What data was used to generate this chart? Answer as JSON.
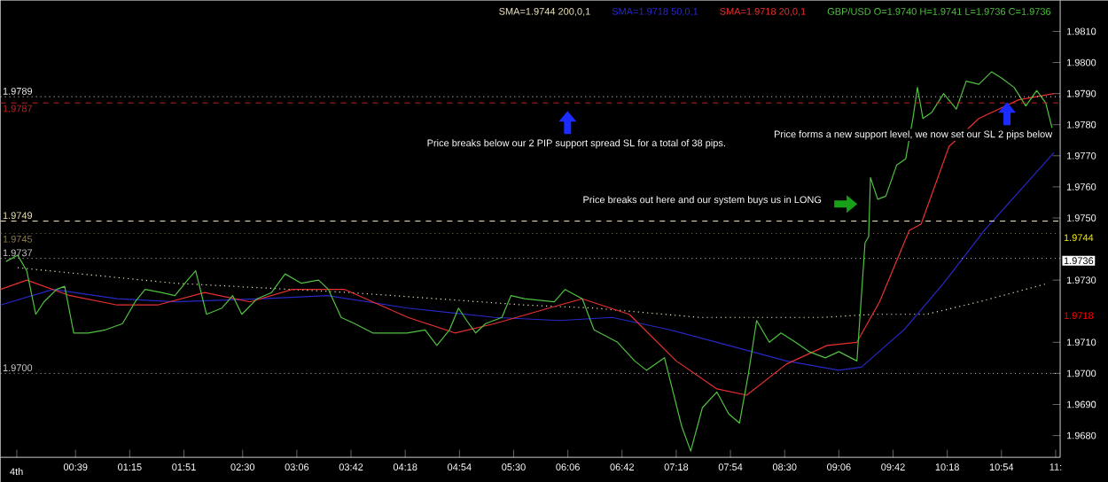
{
  "chart_data": {
    "type": "line",
    "legend": "top right",
    "xlim": [
      -0.18,
      11.55
    ],
    "ylim": [
      1.9673,
      1.982
    ],
    "xticks": [
      {
        "value": 0,
        "label": null
      },
      {
        "value": 0.65,
        "label": "00:39"
      },
      {
        "value": 1.25,
        "label": "01:15"
      },
      {
        "value": 1.85,
        "label": "01:51"
      },
      {
        "value": 2.5,
        "label": "02:30"
      },
      {
        "value": 3.1,
        "label": "03:06"
      },
      {
        "value": 3.7,
        "label": "03:42"
      },
      {
        "value": 4.3,
        "label": "04:18"
      },
      {
        "value": 4.9,
        "label": "04:54"
      },
      {
        "value": 5.5,
        "label": "05:30"
      },
      {
        "value": 6.1,
        "label": "06:06"
      },
      {
        "value": 6.7,
        "label": "06:42"
      },
      {
        "value": 7.3,
        "label": "07:18"
      },
      {
        "value": 7.9,
        "label": "07:54"
      },
      {
        "value": 8.5,
        "label": "08:30"
      },
      {
        "value": 9.1,
        "label": "09:06"
      },
      {
        "value": 9.7,
        "label": "09:42"
      },
      {
        "value": 10.3,
        "label": "10:18"
      },
      {
        "value": 10.9,
        "label": "10:54"
      },
      {
        "value": 11.5,
        "label": "11:"
      }
    ],
    "yticks": [
      {
        "value": 1.968,
        "label": "1.9680"
      },
      {
        "value": 1.969,
        "label": "1.9690"
      },
      {
        "value": 1.97,
        "label": "1.9700"
      },
      {
        "value": 1.971,
        "label": "1.9710"
      },
      {
        "value": 1.973,
        "label": "1.9730"
      },
      {
        "value": 1.975,
        "label": "1.9750"
      },
      {
        "value": 1.976,
        "label": "1.9760"
      },
      {
        "value": 1.977,
        "label": "1.9770"
      },
      {
        "value": 1.978,
        "label": "1.9780"
      },
      {
        "value": 1.979,
        "label": "1.9790"
      },
      {
        "value": 1.98,
        "label": "1.9800"
      },
      {
        "value": 1.981,
        "label": "1.9810"
      }
    ],
    "series": [
      {
        "name": "SMA=1.9744 200,0,1",
        "color": "#f0e6c0",
        "line_style": "dotted",
        "x": [
          0.01,
          1.75,
          3.69,
          5.62,
          6.39,
          7.56,
          8.91,
          9.49,
          10.07,
          10.65,
          11.42
        ],
        "values": [
          1.9734,
          1.9729,
          1.9726,
          1.9722,
          1.9721,
          1.9718,
          1.9718,
          1.9719,
          1.9719,
          1.9723,
          1.9729
        ]
      },
      {
        "name": "SMA=1.9718 50,0,1",
        "color": "#2828c8",
        "x": [
          -0.18,
          0.4,
          1.11,
          1.75,
          2.72,
          3.44,
          4.33,
          5.29,
          6.01,
          6.59,
          7.23,
          7.88,
          8.52,
          9.1,
          9.35,
          9.82,
          10.26,
          10.71,
          11.48
        ],
        "values": [
          1.9722,
          1.9727,
          1.9724,
          1.9723,
          1.9724,
          1.9725,
          1.9721,
          1.9718,
          1.9717,
          1.9718,
          1.9714,
          1.9709,
          1.9704,
          1.9701,
          1.9702,
          1.9714,
          1.9729,
          1.9746,
          1.9771
        ]
      },
      {
        "name": "SMA=1.9718 20,0,1",
        "color": "#e83030",
        "x": [
          -0.18,
          0.11,
          0.59,
          1.11,
          1.56,
          2.08,
          2.58,
          3.05,
          3.63,
          4.33,
          4.85,
          5.29,
          6.01,
          6.26,
          6.78,
          7.3,
          7.75,
          8.08,
          8.52,
          8.97,
          9.3,
          9.55,
          9.88,
          10.01,
          10.32,
          10.65,
          11.09,
          11.48
        ],
        "values": [
          1.9727,
          1.973,
          1.9725,
          1.9722,
          1.9722,
          1.9726,
          1.9723,
          1.9727,
          1.9727,
          1.9718,
          1.9713,
          1.9716,
          1.9722,
          1.9724,
          1.9719,
          1.9704,
          1.9695,
          1.9693,
          1.9703,
          1.9709,
          1.971,
          1.9723,
          1.9746,
          1.9748,
          1.9773,
          1.9782,
          1.9788,
          1.979
        ]
      },
      {
        "name": "GBP/USD O=1.9740 H=1.9741 L=1.9736 C=1.9736",
        "color": "#50c040",
        "x": [
          -0.12,
          0.01,
          0.11,
          0.21,
          0.3,
          0.44,
          0.53,
          0.63,
          0.79,
          0.98,
          1.17,
          1.31,
          1.42,
          1.6,
          1.75,
          1.89,
          1.98,
          2.1,
          2.27,
          2.39,
          2.49,
          2.66,
          2.82,
          2.97,
          3.15,
          3.34,
          3.45,
          3.59,
          3.74,
          3.94,
          4.13,
          4.32,
          4.52,
          4.65,
          4.79,
          4.89,
          4.98,
          5.08,
          5.19,
          5.37,
          5.47,
          5.62,
          5.95,
          6.07,
          6.26,
          6.39,
          6.65,
          6.84,
          6.97,
          7.17,
          7.36,
          7.46,
          7.59,
          7.75,
          7.88,
          8.0,
          8.1,
          8.19,
          8.33,
          8.46,
          8.62,
          8.77,
          8.95,
          9.1,
          9.3,
          9.39,
          9.43,
          9.45,
          9.53,
          9.62,
          9.74,
          9.84,
          9.92,
          9.97,
          10.03,
          10.13,
          10.26,
          10.4,
          10.51,
          10.65,
          10.79,
          10.9,
          11.04,
          11.17,
          11.29,
          11.39,
          11.46
        ],
        "values": [
          1.9736,
          1.9738,
          1.9733,
          1.9719,
          1.9723,
          1.9727,
          1.9728,
          1.9713,
          1.9713,
          1.9714,
          1.9716,
          1.9723,
          1.9727,
          1.9726,
          1.9725,
          1.973,
          1.9733,
          1.9719,
          1.9721,
          1.9725,
          1.9719,
          1.9724,
          1.9726,
          1.9732,
          1.9729,
          1.973,
          1.9727,
          1.9718,
          1.9716,
          1.9713,
          1.9713,
          1.9713,
          1.9714,
          1.9709,
          1.9714,
          1.9721,
          1.9717,
          1.9713,
          1.9716,
          1.9718,
          1.9725,
          1.9724,
          1.9723,
          1.9727,
          1.9724,
          1.9714,
          1.971,
          1.9704,
          1.9701,
          1.9705,
          1.9683,
          1.9675,
          1.9689,
          1.9694,
          1.9687,
          1.9684,
          1.97,
          1.9717,
          1.971,
          1.9713,
          1.971,
          1.9707,
          1.9705,
          1.9707,
          1.9704,
          1.9742,
          1.9744,
          1.9763,
          1.9756,
          1.9757,
          1.9767,
          1.9769,
          1.9782,
          1.9792,
          1.9782,
          1.9784,
          1.979,
          1.9785,
          1.9794,
          1.9793,
          1.9797,
          1.9795,
          1.9792,
          1.9786,
          1.9791,
          1.9787,
          1.9779
        ]
      }
    ],
    "ref_lines": [
      {
        "axis": "y",
        "value": 1.9789,
        "label": "1.9789",
        "color": "#e6e6e6",
        "line_style": "dotted"
      },
      {
        "axis": "y",
        "value": 1.9787,
        "label": "1.9787",
        "color": "#c02020",
        "line_style": "dashed"
      },
      {
        "axis": "y",
        "value": 1.9749,
        "label": "1.9749",
        "color": "#f0e6b4",
        "line_style": "dashed"
      },
      {
        "axis": "y",
        "value": 1.9745,
        "label": "1.9745",
        "color": "#8c7850",
        "line_style": "dotted"
      },
      {
        "axis": "y",
        "value": 1.9737,
        "label": "1.9737",
        "color": "#c8c8c8",
        "line_style": "dotted"
      },
      {
        "axis": "y",
        "value": 1.97,
        "label": "1.9700",
        "color": "#c8c8c8",
        "line_style": "dotted"
      }
    ],
    "annotations": [
      "Price breaks below our 2 PIP support spread SL for a total of 38 pips.",
      "Price forms a new support level, we now set our SL 2 pips below",
      "Price breaks out here and our system buys us in LONG",
      "1.9744",
      "1.9736",
      "1.9718",
      "4th"
    ]
  }
}
